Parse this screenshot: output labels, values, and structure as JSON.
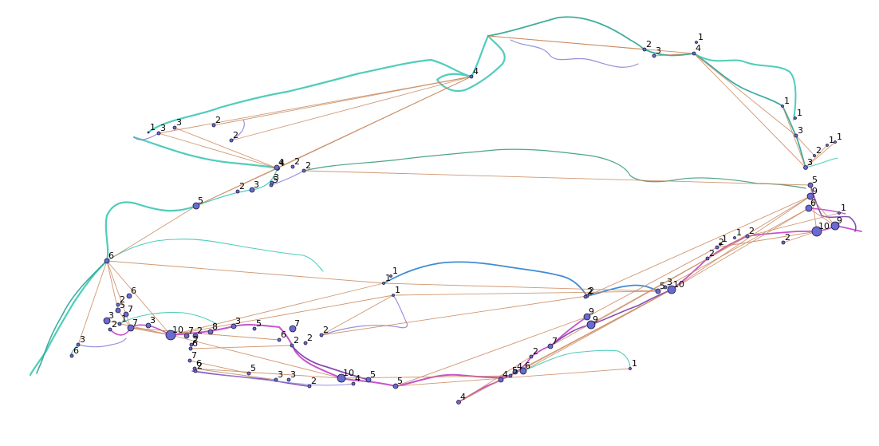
{
  "map": {
    "colors": {
      "teal": "#3cc8b4",
      "teal_dark": "#2aa494",
      "green": "#3a9a78",
      "blue": "#2a7fcf",
      "lavender": "#8c86d8",
      "magenta": "#c040c8",
      "purple": "#7a3aa8",
      "link": "#c8865a",
      "node_fill": "#6a6ad0",
      "node_stroke": "#1a1a40"
    },
    "labels": [
      "1",
      "3",
      "3",
      "2",
      "2",
      "4",
      "4",
      "2",
      "3",
      "1",
      "4",
      "1",
      "1",
      "3",
      "2",
      "1",
      "1",
      "3",
      "5",
      "9",
      "6",
      "1",
      "9",
      "10",
      "2",
      "2",
      "1",
      "2",
      "1",
      "2",
      "5",
      "3",
      "10",
      "2",
      "2",
      "9",
      "9",
      "7",
      "2",
      "6",
      "4",
      "5",
      "4",
      "1",
      "4",
      "5",
      "5",
      "10",
      "4",
      "2",
      "3",
      "3",
      "5",
      "2",
      "6",
      "7",
      "6",
      "2",
      "6",
      "2",
      "5",
      "3",
      "8",
      "2",
      "7",
      "10",
      "3",
      "7",
      "1",
      "5",
      "2",
      "6",
      "7",
      "2",
      "3",
      "6",
      "5",
      "3",
      "2",
      "5",
      "3",
      "4",
      "2",
      "2",
      "1",
      "6",
      "3",
      "7",
      "2",
      "2",
      "1",
      "1"
    ]
  }
}
